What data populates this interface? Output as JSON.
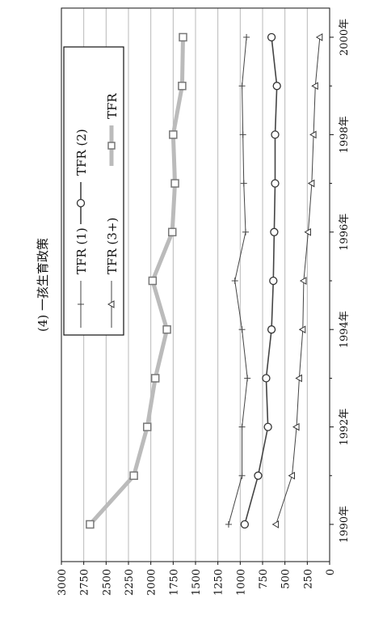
{
  "chart_data": {
    "type": "line",
    "title": "(4) 一孩生育政策",
    "x": [
      1990,
      1991,
      1992,
      1993,
      1994,
      1995,
      1996,
      1997,
      1998,
      1999,
      2000
    ],
    "x_tick_labels": [
      "1990年",
      "1992年",
      "1994年",
      "1996年",
      "1998年",
      "2000年"
    ],
    "x_tick_values": [
      1990,
      1992,
      1994,
      1996,
      1998,
      2000
    ],
    "y_tick_labels": [
      "0",
      "250",
      "500",
      "750",
      "1000",
      "1250",
      "1500",
      "1750",
      "2000",
      "2250",
      "2500",
      "2750",
      "3000"
    ],
    "ylim": [
      0,
      3000
    ],
    "grid": true,
    "legend_position": "top-right",
    "orientation": "rotated-90-counterclockwise",
    "series": [
      {
        "name": "TFR (1)",
        "marker": "plus",
        "color": "#444444",
        "values": [
          1130,
          980,
          980,
          920,
          980,
          1060,
          940,
          960,
          970,
          980,
          930
        ]
      },
      {
        "name": "TFR (2)",
        "marker": "circle",
        "color": "#444444",
        "values": [
          950,
          800,
          690,
          710,
          650,
          630,
          620,
          610,
          610,
          590,
          650
        ]
      },
      {
        "name": "TFR (3+)",
        "marker": "triangle",
        "color": "#444444",
        "values": [
          600,
          420,
          370,
          340,
          300,
          290,
          240,
          200,
          180,
          160,
          110
        ]
      },
      {
        "name": "TFR",
        "marker": "square",
        "color": "#bbbbbb",
        "values": [
          2680,
          2190,
          2040,
          1950,
          1820,
          1980,
          1760,
          1730,
          1750,
          1650,
          1640
        ]
      }
    ]
  }
}
